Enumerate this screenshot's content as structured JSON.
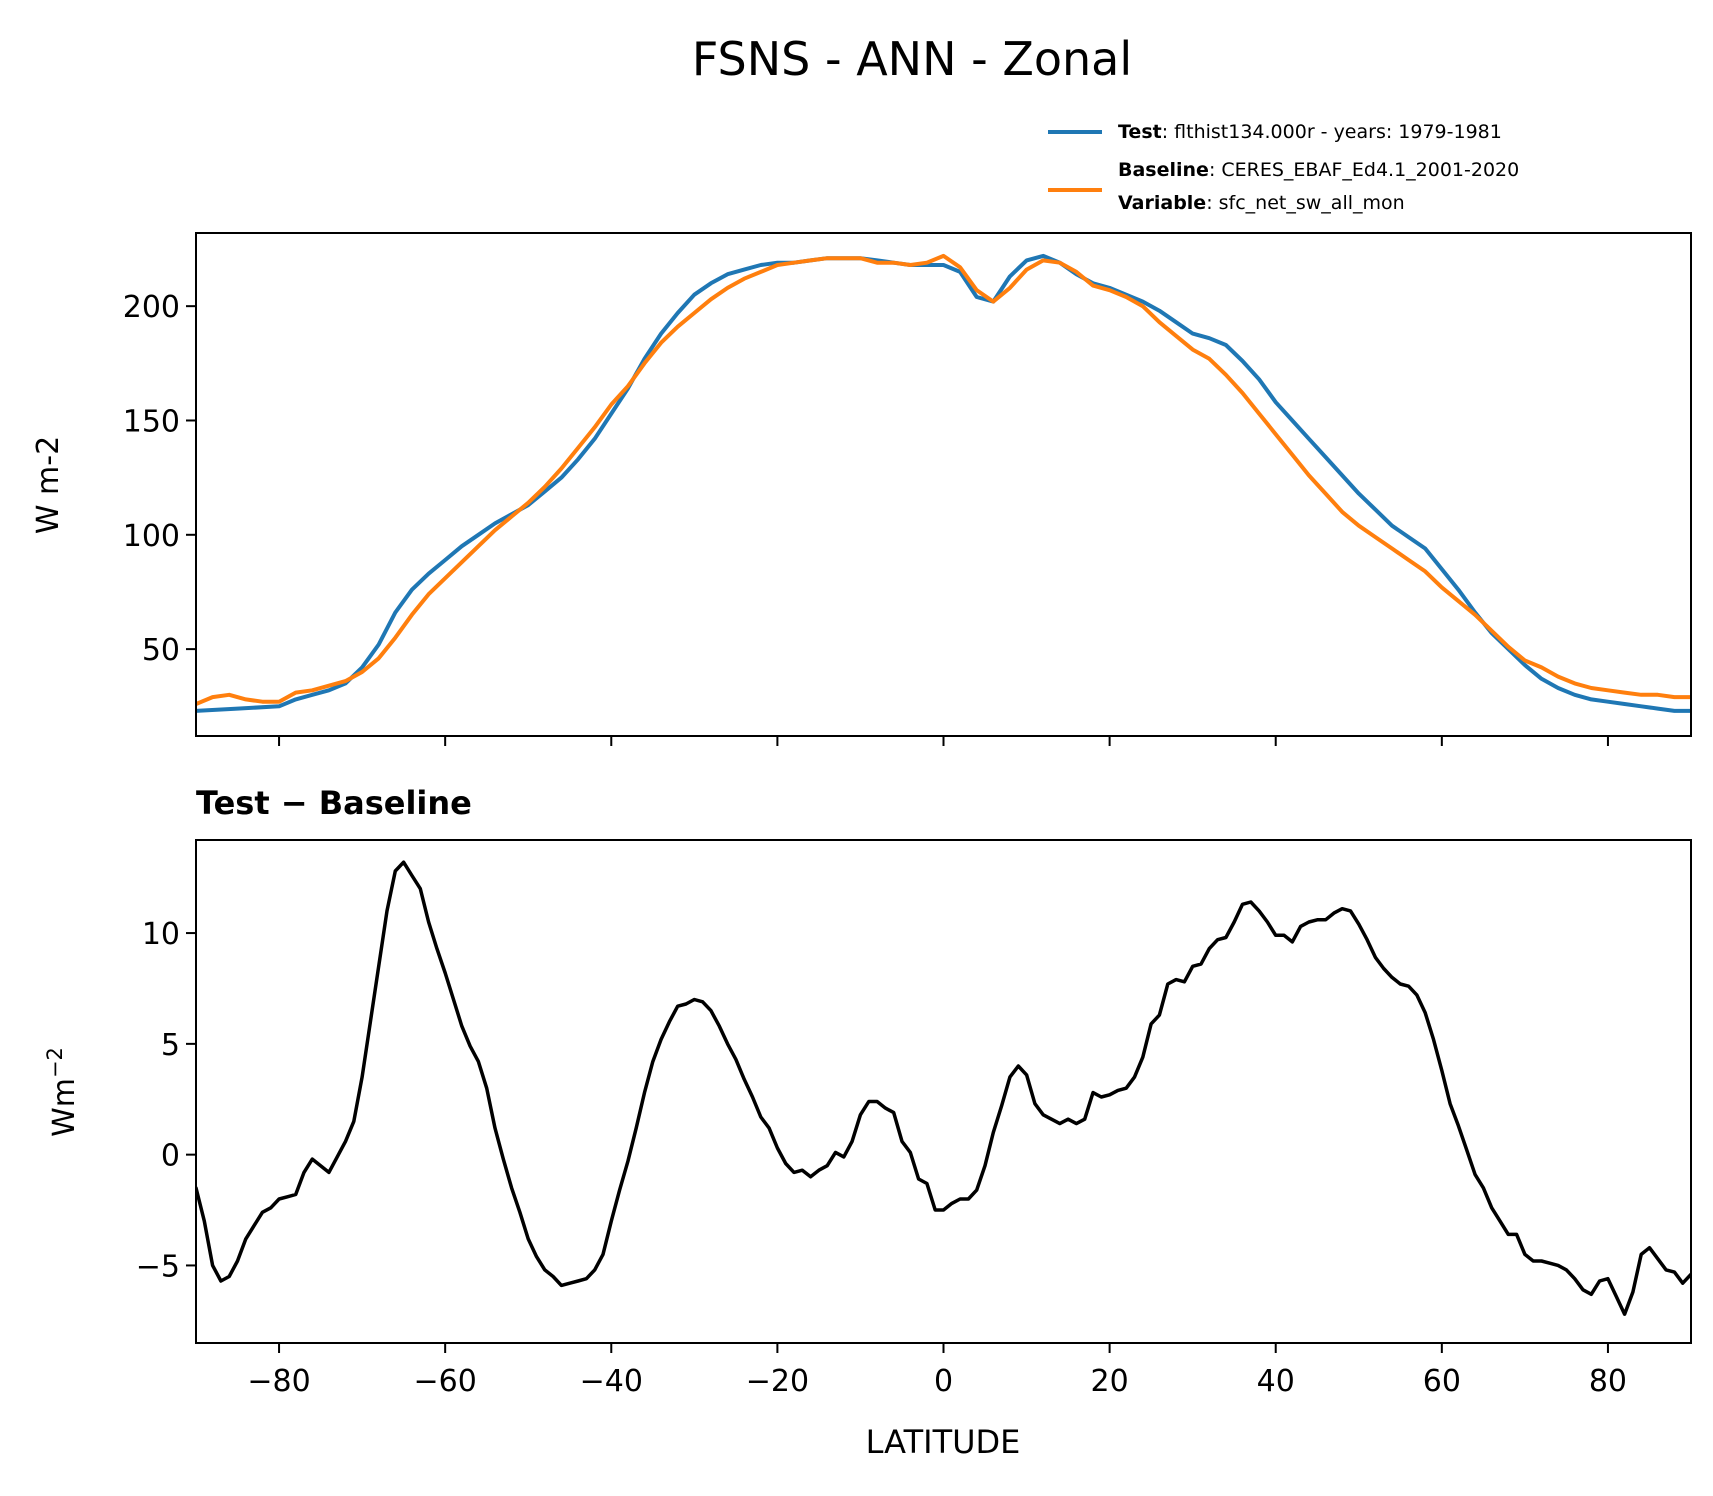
{
  "title": "FSNS - ANN - Zonal",
  "legend": {
    "test": {
      "label": "Test",
      "text": ": flthist134.000r - years: 1979-1981",
      "color": "#1f77b4"
    },
    "baseline": {
      "label": "Baseline",
      "text": ": CERES_EBAF_Ed4.1_2001-2020",
      "color": "#ff7f0e"
    },
    "variable": {
      "label": "Variable",
      "text": ": sfc_net_sw_all_mon"
    }
  },
  "chart_data": [
    {
      "type": "line",
      "ylabel": "W m-2",
      "xlim": [
        -90,
        90
      ],
      "ylim": [
        12,
        232
      ],
      "yticks": [
        50,
        100,
        150,
        200
      ],
      "xticks": [
        -80,
        -60,
        -40,
        -20,
        0,
        20,
        40,
        60,
        80
      ],
      "series": [
        {
          "name": "Test",
          "color": "#1f77b4",
          "x": [
            -90,
            -85,
            -80,
            -78,
            -76,
            -74,
            -72,
            -70,
            -68,
            -66,
            -64,
            -62,
            -60,
            -58,
            -56,
            -54,
            -52,
            -50,
            -48,
            -46,
            -44,
            -42,
            -40,
            -38,
            -36,
            -34,
            -32,
            -30,
            -28,
            -26,
            -24,
            -22,
            -20,
            -18,
            -16,
            -14,
            -12,
            -10,
            -8,
            -6,
            -4,
            -2,
            0,
            2,
            4,
            6,
            8,
            10,
            12,
            14,
            16,
            18,
            20,
            22,
            24,
            26,
            28,
            30,
            32,
            34,
            36,
            38,
            40,
            42,
            44,
            46,
            48,
            50,
            52,
            54,
            56,
            58,
            60,
            62,
            64,
            66,
            68,
            70,
            72,
            74,
            76,
            78,
            80,
            82,
            84,
            86,
            88,
            90
          ],
          "values": [
            23,
            24,
            25,
            28,
            30,
            32,
            35,
            42,
            52,
            66,
            76,
            83,
            89,
            95,
            100,
            105,
            109,
            113,
            119,
            125,
            133,
            142,
            153,
            164,
            177,
            188,
            197,
            205,
            210,
            214,
            216,
            218,
            219,
            219,
            220,
            221,
            221,
            221,
            220,
            219,
            218,
            218,
            218,
            215,
            204,
            202,
            213,
            220,
            222,
            219,
            214,
            210,
            208,
            205,
            202,
            198,
            193,
            188,
            186,
            183,
            176,
            168,
            158,
            150,
            142,
            134,
            126,
            118,
            111,
            104,
            99,
            94,
            85,
            76,
            66,
            57,
            50,
            43,
            37,
            33,
            30,
            28,
            27,
            26,
            25,
            24,
            23,
            23
          ]
        },
        {
          "name": "Baseline",
          "color": "#ff7f0e",
          "x": [
            -90,
            -88,
            -86,
            -84,
            -82,
            -80,
            -78,
            -76,
            -74,
            -72,
            -70,
            -68,
            -66,
            -64,
            -62,
            -60,
            -58,
            -56,
            -54,
            -52,
            -50,
            -48,
            -46,
            -44,
            -42,
            -40,
            -38,
            -36,
            -34,
            -32,
            -30,
            -28,
            -26,
            -24,
            -22,
            -20,
            -18,
            -16,
            -14,
            -12,
            -10,
            -8,
            -6,
            -4,
            -2,
            0,
            2,
            4,
            6,
            8,
            10,
            12,
            14,
            16,
            18,
            20,
            22,
            24,
            26,
            28,
            30,
            32,
            34,
            36,
            38,
            40,
            42,
            44,
            46,
            48,
            50,
            52,
            54,
            56,
            58,
            60,
            62,
            64,
            66,
            68,
            70,
            72,
            74,
            76,
            78,
            80,
            82,
            84,
            86,
            88,
            90
          ],
          "values": [
            26,
            29,
            30,
            28,
            27,
            27,
            31,
            32,
            34,
            36,
            40,
            46,
            55,
            65,
            74,
            81,
            88,
            95,
            102,
            108,
            114,
            121,
            129,
            138,
            147,
            157,
            165,
            175,
            184,
            191,
            197,
            203,
            208,
            212,
            215,
            218,
            219,
            220,
            221,
            221,
            221,
            219,
            219,
            218,
            219,
            222,
            217,
            207,
            202,
            208,
            216,
            220,
            219,
            215,
            209,
            207,
            204,
            200,
            193,
            187,
            181,
            177,
            170,
            162,
            153,
            144,
            135,
            126,
            118,
            110,
            104,
            99,
            94,
            89,
            84,
            77,
            71,
            65,
            58,
            51,
            45,
            42,
            38,
            35,
            33,
            32,
            31,
            30,
            30,
            29,
            29
          ]
        }
      ]
    },
    {
      "type": "line",
      "title": "Test − Baseline",
      "ylabel": "Wm",
      "ylabel_sup": "−2",
      "xlabel": "LATITUDE",
      "xlim": [
        -90,
        90
      ],
      "ylim": [
        -8.5,
        14.2
      ],
      "yticks": [
        -5,
        0,
        5,
        10
      ],
      "xticks": [
        -80,
        -60,
        -40,
        -20,
        0,
        20,
        40,
        60,
        80
      ],
      "xtick_labels": [
        "−80",
        "−60",
        "−40",
        "−20",
        "0",
        "20",
        "40",
        "60",
        "80"
      ],
      "ytick_labels": [
        "−5",
        "0",
        "5",
        "10"
      ],
      "series": [
        {
          "name": "Test - Baseline",
          "color": "#000000",
          "x": [
            -90,
            -89,
            -88,
            -87,
            -86,
            -85,
            -84,
            -83,
            -82,
            -81,
            -80,
            -79,
            -78,
            -77,
            -76,
            -75,
            -74,
            -73,
            -72,
            -71,
            -70,
            -69,
            -68,
            -67,
            -66,
            -65,
            -64,
            -63,
            -62,
            -61,
            -60,
            -59,
            -58,
            -57,
            -56,
            -55,
            -54,
            -53,
            -52,
            -51,
            -50,
            -49,
            -48,
            -47,
            -46,
            -45,
            -44,
            -43,
            -42,
            -41,
            -40,
            -39,
            -38,
            -37,
            -36,
            -35,
            -34,
            -33,
            -32,
            -31,
            -30,
            -29,
            -28,
            -27,
            -26,
            -25,
            -24,
            -23,
            -22,
            -21,
            -20,
            -19,
            -18,
            -17,
            -16,
            -15,
            -14,
            -13,
            -12,
            -11,
            -10,
            -9,
            -8,
            -7,
            -6,
            -5,
            -4,
            -3,
            -2,
            -1,
            0,
            1,
            2,
            3,
            4,
            5,
            6,
            7,
            8,
            9,
            10,
            11,
            12,
            13,
            14,
            15,
            16,
            17,
            18,
            19,
            20,
            21,
            22,
            23,
            24,
            25,
            26,
            27,
            28,
            29,
            30,
            31,
            32,
            33,
            34,
            35,
            36,
            37,
            38,
            39,
            40,
            41,
            42,
            43,
            44,
            45,
            46,
            47,
            48,
            49,
            50,
            51,
            52,
            53,
            54,
            55,
            56,
            57,
            58,
            59,
            60,
            61,
            62,
            63,
            64,
            65,
            66,
            67,
            68,
            69,
            70,
            71,
            72,
            73,
            74,
            75,
            76,
            77,
            78,
            79,
            80,
            81,
            82,
            83,
            84,
            85,
            86,
            87,
            88,
            89,
            90
          ],
          "values": [
            -1.5,
            -3,
            -5,
            -5.7,
            -5.5,
            -4.8,
            -3.8,
            -3.2,
            -2.6,
            -2.4,
            -2,
            -1.9,
            -1.8,
            -0.8,
            -0.2,
            -0.5,
            -0.8,
            -0.1,
            0.6,
            1.5,
            3.5,
            6,
            8.5,
            11,
            12.8,
            13.2,
            12.6,
            12,
            10.5,
            9.3,
            8.2,
            7,
            5.8,
            4.9,
            4.2,
            3,
            1.2,
            -0.2,
            -1.5,
            -2.6,
            -3.8,
            -4.6,
            -5.2,
            -5.5,
            -5.9,
            -5.8,
            -5.7,
            -5.6,
            -5.2,
            -4.5,
            -3,
            -1.6,
            -0.3,
            1.2,
            2.8,
            4.2,
            5.2,
            6,
            6.7,
            6.8,
            7,
            6.9,
            6.5,
            5.8,
            5,
            4.3,
            3.4,
            2.6,
            1.7,
            1.2,
            0.3,
            -0.4,
            -0.8,
            -0.7,
            -1,
            -0.7,
            -0.5,
            0.1,
            -0.1,
            0.6,
            1.8,
            2.4,
            2.4,
            2.1,
            1.9,
            0.6,
            0.1,
            -1.1,
            -1.3,
            -2.5,
            -2.5,
            -2.2,
            -2,
            -2,
            -1.6,
            -0.5,
            1,
            2.2,
            3.5,
            4,
            3.6,
            2.3,
            1.8,
            1.6,
            1.4,
            1.6,
            1.4,
            1.6,
            2.8,
            2.6,
            2.7,
            2.9,
            3,
            3.5,
            4.4,
            5.9,
            6.3,
            7.7,
            7.9,
            7.8,
            8.5,
            8.6,
            9.3,
            9.7,
            9.8,
            10.5,
            11.3,
            11.4,
            11,
            10.5,
            9.9,
            9.9,
            9.6,
            10.3,
            10.5,
            10.6,
            10.6,
            10.9,
            11.1,
            11,
            10.4,
            9.7,
            8.9,
            8.4,
            8,
            7.7,
            7.6,
            7.2,
            6.4,
            5.2,
            3.8,
            2.3,
            1.3,
            0.2,
            -0.9,
            -1.5,
            -2.4,
            -3,
            -3.6,
            -3.6,
            -4.5,
            -4.8,
            -4.8,
            -4.9,
            -5,
            -5.2,
            -5.6,
            -6.1,
            -6.3,
            -5.7,
            -5.6,
            -6.4,
            -7.2,
            -6.2,
            -4.5,
            -4.2,
            -4.7,
            -5.2,
            -5.3,
            -5.8,
            -5.4
          ]
        }
      ]
    }
  ]
}
